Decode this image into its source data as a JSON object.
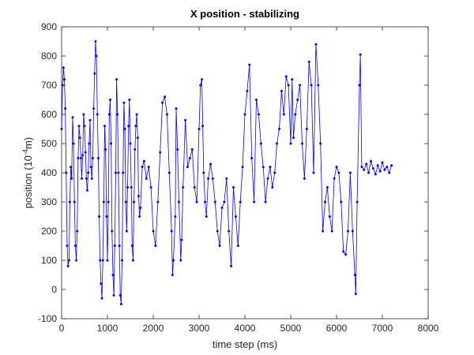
{
  "chart_data": {
    "type": "line",
    "title": "X position - stabilizing",
    "xlabel": "time step (ms)",
    "ylabel": [
      "position (10",
      "-4",
      "m)"
    ],
    "color": "#0000ff",
    "xlim": [
      0,
      8000
    ],
    "xticks": [
      0,
      1000,
      2000,
      3000,
      4000,
      5000,
      6000,
      7000,
      8000
    ],
    "ylim": [
      -100,
      900
    ],
    "yticks": [
      -100,
      0,
      100,
      200,
      300,
      400,
      500,
      600,
      700,
      800,
      900
    ],
    "x": [
      0,
      20,
      40,
      60,
      80,
      100,
      120,
      140,
      160,
      180,
      200,
      220,
      240,
      260,
      280,
      300,
      320,
      340,
      360,
      380,
      400,
      420,
      440,
      460,
      480,
      500,
      520,
      540,
      560,
      580,
      600,
      620,
      640,
      660,
      680,
      700,
      720,
      740,
      760,
      780,
      800,
      820,
      840,
      860,
      880,
      900,
      920,
      940,
      960,
      980,
      1000,
      1020,
      1040,
      1060,
      1080,
      1100,
      1120,
      1140,
      1160,
      1180,
      1200,
      1220,
      1240,
      1260,
      1280,
      1300,
      1320,
      1340,
      1360,
      1380,
      1400,
      1420,
      1440,
      1460,
      1480,
      1500,
      1520,
      1540,
      1560,
      1580,
      1600,
      1620,
      1640,
      1660,
      1680,
      1700,
      1720,
      1760,
      1800,
      1850,
      1900,
      1950,
      2000,
      2050,
      2100,
      2150,
      2200,
      2250,
      2300,
      2350,
      2400,
      2420,
      2440,
      2480,
      2500,
      2530,
      2560,
      2600,
      2620,
      2650,
      2700,
      2750,
      2800,
      2850,
      2900,
      2950,
      3000,
      3030,
      3060,
      3080,
      3100,
      3130,
      3160,
      3200,
      3250,
      3300,
      3350,
      3400,
      3450,
      3500,
      3550,
      3600,
      3650,
      3700,
      3750,
      3800,
      3850,
      3900,
      3950,
      4000,
      4050,
      4100,
      4150,
      4200,
      4250,
      4300,
      4350,
      4400,
      4450,
      4500,
      4550,
      4600,
      4650,
      4700,
      4750,
      4800,
      4850,
      4900,
      4950,
      5000,
      5030,
      5060,
      5100,
      5150,
      5200,
      5250,
      5300,
      5350,
      5400,
      5450,
      5500,
      5550,
      5600,
      5650,
      5700,
      5750,
      5800,
      5850,
      5900,
      5950,
      6000,
      6050,
      6100,
      6150,
      6200,
      6250,
      6300,
      6350,
      6400,
      6420,
      6450,
      6500,
      6520,
      6550,
      6600,
      6650,
      6700,
      6750,
      6800,
      6850,
      6900,
      6950,
      7000,
      7050,
      7100,
      7150,
      7200
    ],
    "values": [
      550,
      700,
      760,
      720,
      620,
      400,
      150,
      80,
      100,
      300,
      420,
      380,
      590,
      500,
      300,
      150,
      100,
      200,
      450,
      560,
      520,
      450,
      380,
      460,
      600,
      560,
      470,
      380,
      340,
      400,
      500,
      580,
      420,
      380,
      450,
      620,
      740,
      850,
      800,
      600,
      450,
      250,
      100,
      20,
      -30,
      100,
      300,
      560,
      480,
      250,
      100,
      300,
      600,
      650,
      500,
      200,
      50,
      -20,
      150,
      400,
      720,
      600,
      400,
      150,
      -20,
      -50,
      100,
      400,
      640,
      550,
      300,
      200,
      350,
      560,
      650,
      500,
      350,
      150,
      100,
      300,
      480,
      560,
      600,
      520,
      320,
      250,
      280,
      420,
      440,
      380,
      420,
      350,
      200,
      150,
      300,
      470,
      640,
      660,
      600,
      400,
      200,
      50,
      100,
      250,
      620,
      480,
      300,
      100,
      170,
      350,
      580,
      420,
      450,
      480,
      350,
      300,
      550,
      700,
      720,
      560,
      400,
      300,
      250,
      380,
      430,
      380,
      300,
      200,
      150,
      280,
      300,
      380,
      200,
      80,
      350,
      250,
      150,
      300,
      420,
      600,
      680,
      770,
      450,
      300,
      650,
      600,
      500,
      420,
      300,
      380,
      420,
      350,
      400,
      500,
      550,
      680,
      600,
      730,
      700,
      500,
      720,
      520,
      600,
      650,
      700,
      500,
      380,
      550,
      780,
      700,
      400,
      840,
      700,
      500,
      200,
      300,
      350,
      250,
      200,
      380,
      420,
      400,
      300,
      130,
      120,
      200,
      400,
      200,
      50,
      -15,
      300,
      700,
      805,
      420,
      410,
      430,
      400,
      440,
      415,
      395,
      425,
      405,
      435,
      410,
      420,
      400,
      425
    ]
  }
}
